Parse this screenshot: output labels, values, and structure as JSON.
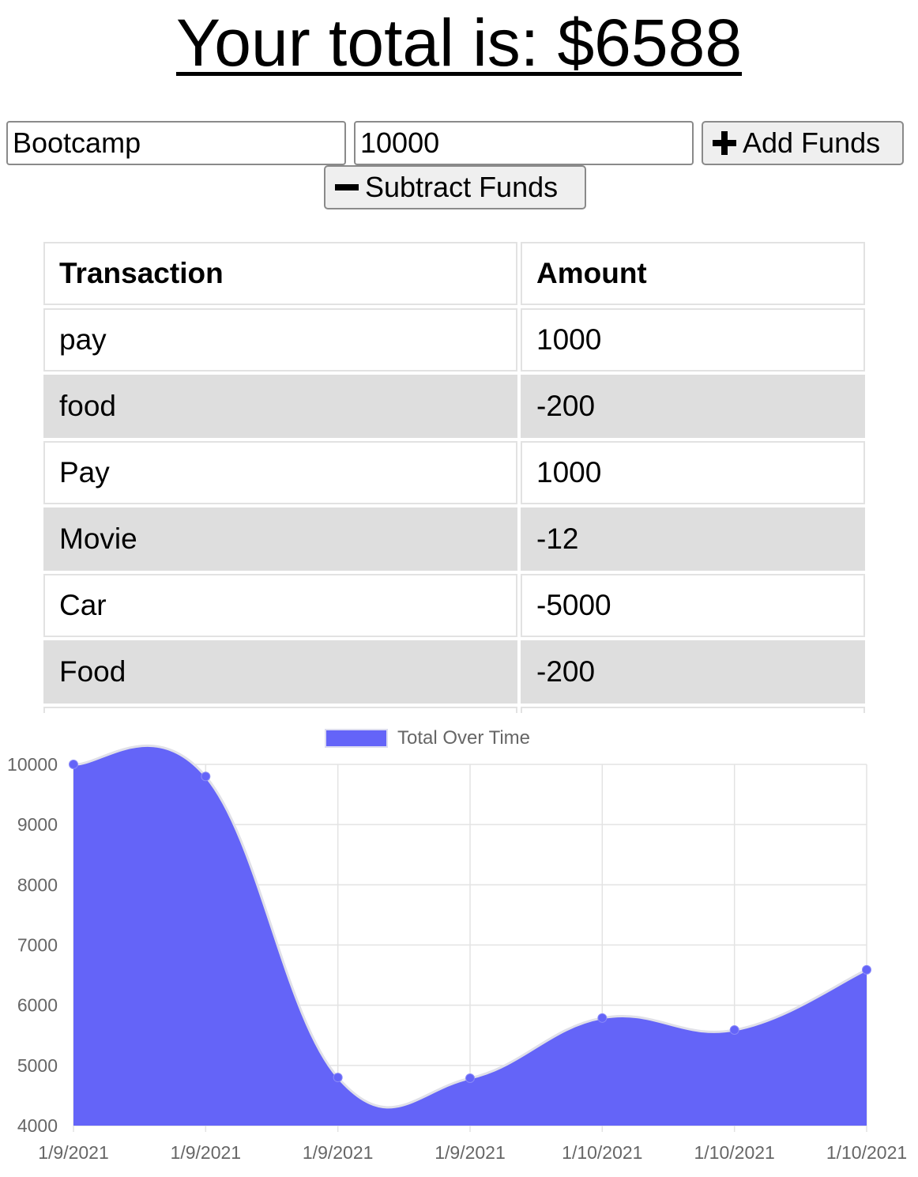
{
  "header": {
    "title": "Your total is: $6588"
  },
  "form": {
    "name_value": "Bootcamp",
    "amount_value": "10000",
    "add_label": "Add Funds",
    "subtract_label": "Subtract Funds"
  },
  "table": {
    "headers": [
      "Transaction",
      "Amount"
    ],
    "rows": [
      {
        "name": "pay",
        "amount": "1000"
      },
      {
        "name": "food",
        "amount": "-200"
      },
      {
        "name": "Pay",
        "amount": "1000"
      },
      {
        "name": "Movie",
        "amount": "-12"
      },
      {
        "name": "Car",
        "amount": "-5000"
      },
      {
        "name": "Food",
        "amount": "-200"
      }
    ]
  },
  "chart_data": {
    "type": "area",
    "x": [
      "1/9/2021",
      "1/9/2021",
      "1/9/2021",
      "1/9/2021",
      "1/10/2021",
      "1/10/2021",
      "1/10/2021"
    ],
    "series": [
      {
        "name": "Total Over Time",
        "values": [
          10000,
          9800,
          4800,
          4788,
          5788,
          5588,
          6588
        ]
      }
    ],
    "ylim": [
      4000,
      10000
    ],
    "yticks": [
      10000,
      9000,
      8000,
      7000,
      6000,
      5000,
      4000
    ],
    "grid": true,
    "legend": "top",
    "colors": {
      "fill": "#6464f8",
      "line": "#e0e0e8",
      "point": "#6464f8"
    }
  }
}
